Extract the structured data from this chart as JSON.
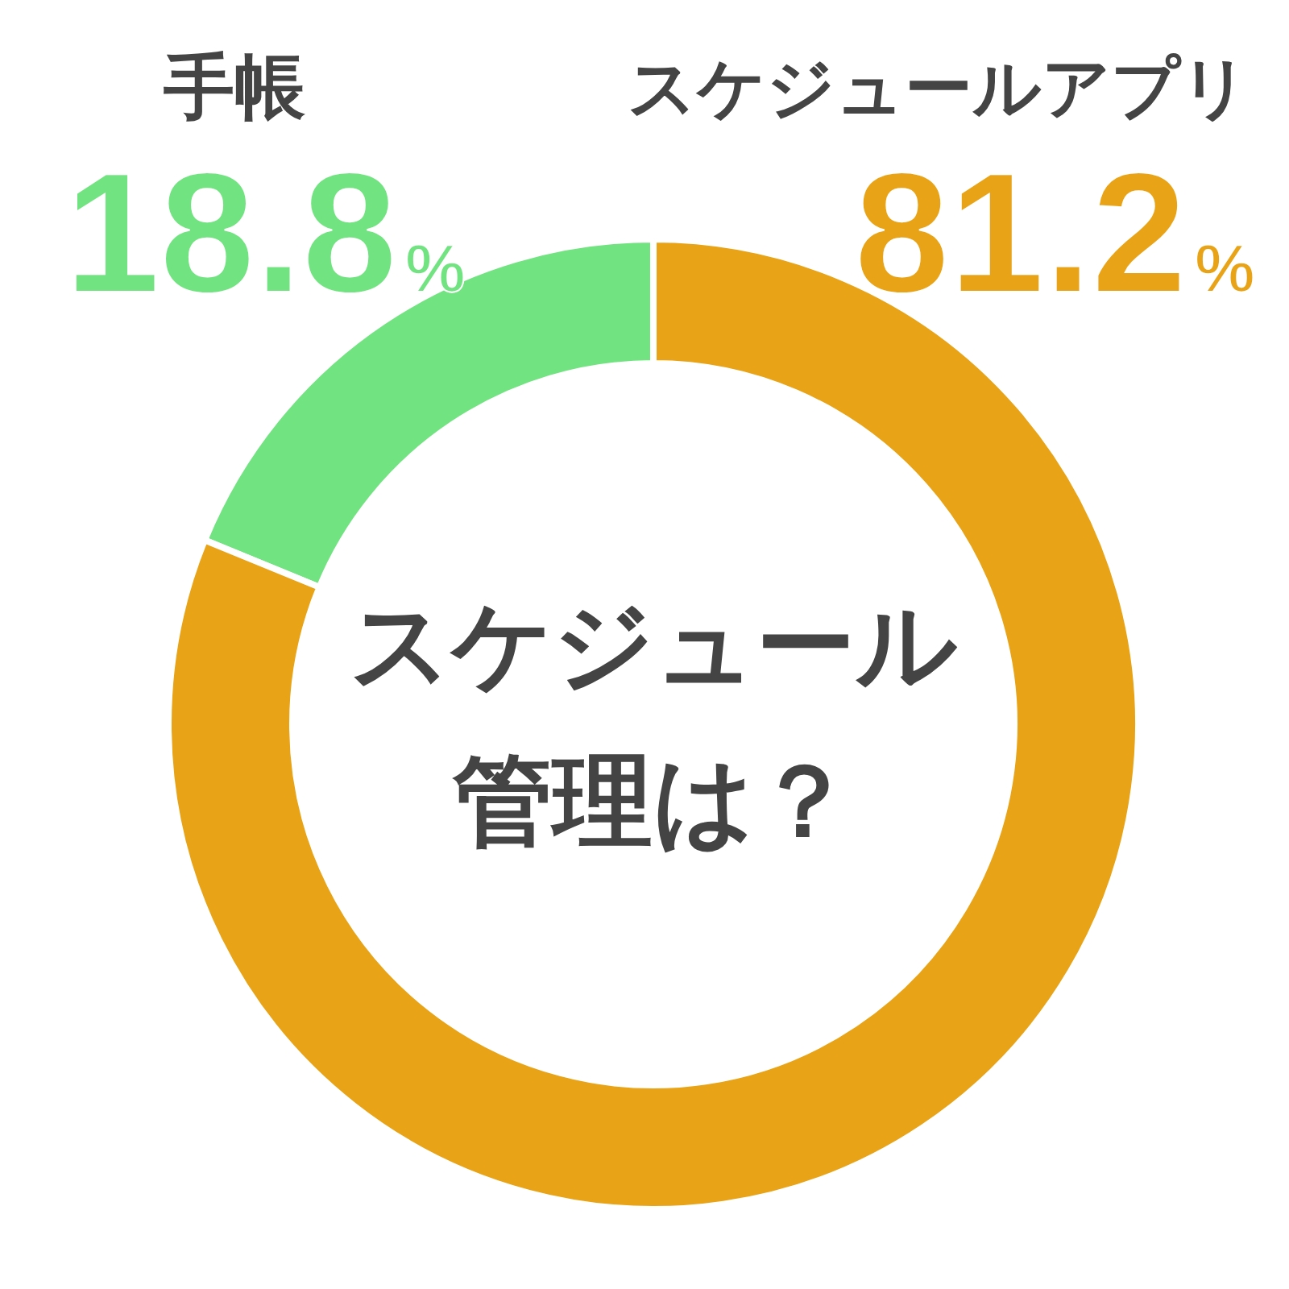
{
  "chart_data": {
    "type": "donut",
    "title": "スケジュール管理は？",
    "categories": [
      "手帳",
      "スケジュールアプリ"
    ],
    "values": [
      18.8,
      81.2
    ],
    "colors": [
      "#72e381",
      "#e8a316"
    ],
    "value_labels": [
      "18.8%",
      "81.2%"
    ]
  }
}
